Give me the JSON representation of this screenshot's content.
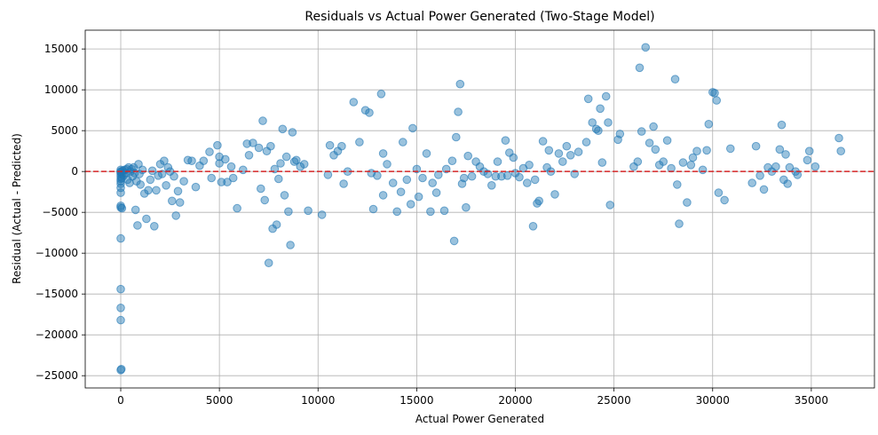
{
  "chart_data": {
    "type": "scatter",
    "title": "Residuals vs Actual Power Generated (Two-Stage Model)",
    "xlabel": "Actual Power Generated",
    "ylabel": "Residual (Actual - Predicted)",
    "xlim": [
      -1800,
      38200
    ],
    "ylim": [
      -26500,
      17300
    ],
    "xticks": [
      0,
      5000,
      10000,
      15000,
      20000,
      25000,
      30000,
      35000
    ],
    "yticks": [
      -25000,
      -20000,
      -15000,
      -10000,
      -5000,
      0,
      5000,
      10000,
      15000
    ],
    "grid": true,
    "point_color": "#1f77b4",
    "point_alpha": 0.45,
    "reference_line": {
      "y": 0,
      "color": "#d62728",
      "style": "dashed"
    },
    "points": [
      [
        0,
        -24300
      ],
      [
        30,
        -24200
      ],
      [
        0,
        -18200
      ],
      [
        0,
        -16700
      ],
      [
        0,
        -14400
      ],
      [
        0,
        -8200
      ],
      [
        0,
        -4400
      ],
      [
        0,
        -4200
      ],
      [
        60,
        -4500
      ],
      [
        0,
        -2600
      ],
      [
        0,
        -2000
      ],
      [
        0,
        -1500
      ],
      [
        0,
        -1200
      ],
      [
        0,
        -900
      ],
      [
        0,
        -600
      ],
      [
        0,
        -300
      ],
      [
        0,
        0
      ],
      [
        0,
        200
      ],
      [
        0,
        -100
      ],
      [
        50,
        -800
      ],
      [
        80,
        -300
      ],
      [
        100,
        100
      ],
      [
        150,
        -500
      ],
      [
        200,
        200
      ],
      [
        250,
        -200
      ],
      [
        300,
        300
      ],
      [
        350,
        -1000
      ],
      [
        400,
        500
      ],
      [
        450,
        -1400
      ],
      [
        500,
        0
      ],
      [
        550,
        300
      ],
      [
        600,
        -600
      ],
      [
        650,
        500
      ],
      [
        700,
        -200
      ],
      [
        750,
        -4700
      ],
      [
        800,
        -1200
      ],
      [
        850,
        -6600
      ],
      [
        900,
        900
      ],
      [
        950,
        -300
      ],
      [
        1000,
        -1600
      ],
      [
        1100,
        200
      ],
      [
        1200,
        -2700
      ],
      [
        1300,
        -5800
      ],
      [
        1400,
        -2300
      ],
      [
        1500,
        -1000
      ],
      [
        1600,
        100
      ],
      [
        1700,
        -6700
      ],
      [
        1800,
        -2300
      ],
      [
        1900,
        -500
      ],
      [
        2000,
        900
      ],
      [
        2100,
        -300
      ],
      [
        2200,
        1300
      ],
      [
        2300,
        -1700
      ],
      [
        2400,
        500
      ],
      [
        2500,
        0
      ],
      [
        2600,
        -3600
      ],
      [
        2700,
        -600
      ],
      [
        2800,
        -5400
      ],
      [
        2900,
        -2400
      ],
      [
        3000,
        -3800
      ],
      [
        3200,
        -1200
      ],
      [
        3400,
        1400
      ],
      [
        3600,
        1300
      ],
      [
        3800,
        -1900
      ],
      [
        4000,
        700
      ],
      [
        4200,
        1300
      ],
      [
        4500,
        2400
      ],
      [
        4600,
        -800
      ],
      [
        4900,
        3200
      ],
      [
        5000,
        1800
      ],
      [
        5000,
        1000
      ],
      [
        5100,
        -1300
      ],
      [
        5300,
        1500
      ],
      [
        5400,
        -1300
      ],
      [
        5600,
        600
      ],
      [
        5700,
        -800
      ],
      [
        5900,
        -4500
      ],
      [
        6200,
        200
      ],
      [
        6400,
        3400
      ],
      [
        6500,
        2000
      ],
      [
        6700,
        3500
      ],
      [
        7000,
        2900
      ],
      [
        7100,
        -2100
      ],
      [
        7200,
        6200
      ],
      [
        7300,
        -3500
      ],
      [
        7400,
        2500
      ],
      [
        7500,
        -11200
      ],
      [
        7600,
        3100
      ],
      [
        7700,
        -7000
      ],
      [
        7800,
        300
      ],
      [
        7900,
        -6500
      ],
      [
        8000,
        -900
      ],
      [
        8100,
        1000
      ],
      [
        8200,
        5200
      ],
      [
        8300,
        -2900
      ],
      [
        8400,
        1800
      ],
      [
        8500,
        -4900
      ],
      [
        8600,
        -9000
      ],
      [
        8700,
        4800
      ],
      [
        8800,
        1200
      ],
      [
        8900,
        1400
      ],
      [
        9100,
        600
      ],
      [
        9300,
        900
      ],
      [
        9500,
        -4800
      ],
      [
        10200,
        -5300
      ],
      [
        10500,
        -400
      ],
      [
        10800,
        2000
      ],
      [
        11000,
        2500
      ],
      [
        11200,
        3100
      ],
      [
        11300,
        -1500
      ],
      [
        11500,
        0
      ],
      [
        11800,
        8500
      ],
      [
        12100,
        3600
      ],
      [
        12400,
        7500
      ],
      [
        12600,
        7200
      ],
      [
        12700,
        -200
      ],
      [
        12800,
        -4600
      ],
      [
        13000,
        -500
      ],
      [
        13200,
        9500
      ],
      [
        13300,
        -2900
      ],
      [
        13500,
        900
      ],
      [
        13800,
        -1400
      ],
      [
        14000,
        -4900
      ],
      [
        14200,
        -2500
      ],
      [
        14300,
        3600
      ],
      [
        14500,
        -1000
      ],
      [
        14700,
        -4000
      ],
      [
        14800,
        5300
      ],
      [
        15000,
        300
      ],
      [
        15100,
        -3100
      ],
      [
        15300,
        -800
      ],
      [
        15500,
        2200
      ],
      [
        15700,
        -4900
      ],
      [
        15800,
        -1400
      ],
      [
        16000,
        -2600
      ],
      [
        16100,
        -400
      ],
      [
        16400,
        -4800
      ],
      [
        16500,
        300
      ],
      [
        16800,
        1300
      ],
      [
        16900,
        -8500
      ],
      [
        17000,
        4200
      ],
      [
        17100,
        7300
      ],
      [
        17200,
        10700
      ],
      [
        17300,
        -1500
      ],
      [
        17400,
        -800
      ],
      [
        17500,
        -4400
      ],
      [
        17600,
        1900
      ],
      [
        17800,
        -600
      ],
      [
        18000,
        1200
      ],
      [
        18200,
        600
      ],
      [
        18400,
        0
      ],
      [
        18600,
        -300
      ],
      [
        18800,
        -1700
      ],
      [
        19000,
        -600
      ],
      [
        19100,
        1200
      ],
      [
        19300,
        -600
      ],
      [
        19500,
        3800
      ],
      [
        19600,
        -500
      ],
      [
        19700,
        2300
      ],
      [
        19900,
        1700
      ],
      [
        20000,
        -200
      ],
      [
        20200,
        -700
      ],
      [
        20400,
        400
      ],
      [
        20600,
        -1400
      ],
      [
        20700,
        800
      ],
      [
        20900,
        -6700
      ],
      [
        21000,
        -1000
      ],
      [
        21100,
        -3900
      ],
      [
        21200,
        -3600
      ],
      [
        21400,
        3700
      ],
      [
        21600,
        500
      ],
      [
        21700,
        2600
      ],
      [
        21800,
        0
      ],
      [
        22000,
        -2800
      ],
      [
        22200,
        2200
      ],
      [
        22400,
        1200
      ],
      [
        22600,
        3100
      ],
      [
        22800,
        2000
      ],
      [
        23000,
        -300
      ],
      [
        23200,
        2400
      ],
      [
        23600,
        3600
      ],
      [
        23700,
        8900
      ],
      [
        23900,
        6000
      ],
      [
        24100,
        5200
      ],
      [
        24200,
        5000
      ],
      [
        24300,
        7700
      ],
      [
        24400,
        1100
      ],
      [
        24600,
        9200
      ],
      [
        24700,
        6000
      ],
      [
        24800,
        -4100
      ],
      [
        25200,
        3900
      ],
      [
        25300,
        4600
      ],
      [
        26000,
        600
      ],
      [
        26200,
        1200
      ],
      [
        26300,
        12700
      ],
      [
        26400,
        4900
      ],
      [
        26600,
        15200
      ],
      [
        26800,
        3500
      ],
      [
        27000,
        5500
      ],
      [
        27100,
        2700
      ],
      [
        27300,
        800
      ],
      [
        27500,
        1200
      ],
      [
        27700,
        3800
      ],
      [
        27900,
        400
      ],
      [
        28100,
        11300
      ],
      [
        28200,
        -1600
      ],
      [
        28300,
        -6400
      ],
      [
        28500,
        1100
      ],
      [
        28700,
        -3800
      ],
      [
        28900,
        800
      ],
      [
        29000,
        1700
      ],
      [
        29200,
        2500
      ],
      [
        29500,
        200
      ],
      [
        29700,
        2600
      ],
      [
        29800,
        5800
      ],
      [
        30000,
        9700
      ],
      [
        30100,
        9600
      ],
      [
        30200,
        8700
      ],
      [
        30300,
        -2600
      ],
      [
        30600,
        -3500
      ],
      [
        30900,
        2800
      ],
      [
        32000,
        -1400
      ],
      [
        32200,
        3100
      ],
      [
        32400,
        -500
      ],
      [
        32600,
        -2200
      ],
      [
        32800,
        500
      ],
      [
        33000,
        0
      ],
      [
        33200,
        600
      ],
      [
        33400,
        2700
      ],
      [
        33500,
        5700
      ],
      [
        33600,
        -1000
      ],
      [
        33700,
        2100
      ],
      [
        33800,
        -1500
      ],
      [
        33900,
        500
      ],
      [
        34200,
        0
      ],
      [
        34300,
        -400
      ],
      [
        34800,
        1400
      ],
      [
        34900,
        2500
      ],
      [
        35200,
        600
      ],
      [
        36400,
        4100
      ],
      [
        36500,
        2500
      ],
      [
        13300,
        2200
      ],
      [
        10600,
        3200
      ]
    ]
  }
}
